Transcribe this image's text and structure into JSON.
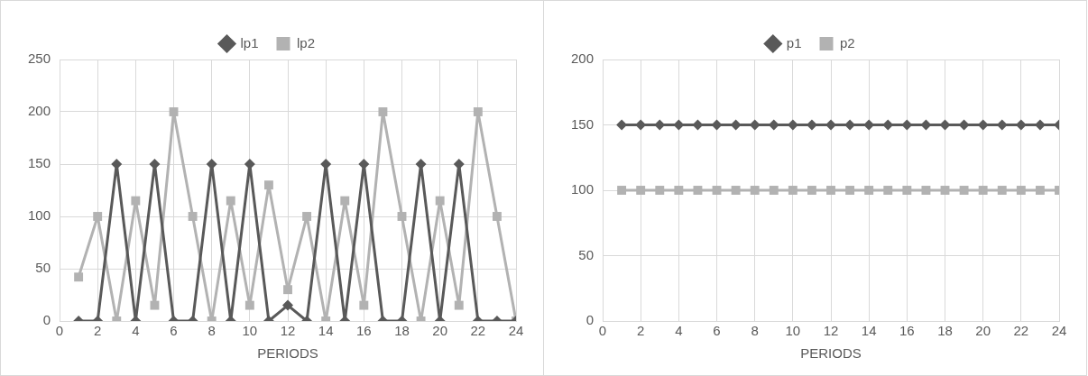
{
  "chart_data": [
    {
      "type": "line",
      "xlabel": "PERIODS",
      "x": [
        1,
        2,
        3,
        4,
        5,
        6,
        7,
        8,
        9,
        10,
        11,
        12,
        13,
        14,
        15,
        16,
        17,
        18,
        19,
        20,
        21,
        22,
        23,
        24
      ],
      "series": [
        {
          "name": "lp1",
          "color": "#595959",
          "marker": "diamond",
          "values": [
            0,
            0,
            150,
            0,
            150,
            0,
            0,
            150,
            0,
            150,
            0,
            15,
            0,
            150,
            0,
            150,
            0,
            0,
            150,
            0,
            150,
            0,
            0,
            0
          ]
        },
        {
          "name": "lp2",
          "color": "#b2b2b2",
          "marker": "square",
          "values": [
            42,
            100,
            0,
            115,
            15,
            200,
            100,
            0,
            115,
            15,
            130,
            30,
            100,
            0,
            115,
            15,
            200,
            100,
            0,
            115,
            15,
            200,
            100,
            0
          ]
        }
      ],
      "xlim": [
        0,
        24
      ],
      "xticks": [
        0,
        2,
        4,
        6,
        8,
        10,
        12,
        14,
        16,
        18,
        20,
        22,
        24
      ],
      "ylim": [
        0,
        250
      ],
      "yticks": [
        0,
        50,
        100,
        150,
        200,
        250
      ],
      "grid": true,
      "legend": "top",
      "line_style": "solid"
    },
    {
      "type": "line",
      "xlabel": "PERIODS",
      "x": [
        1,
        2,
        3,
        4,
        5,
        6,
        7,
        8,
        9,
        10,
        11,
        12,
        13,
        14,
        15,
        16,
        17,
        18,
        19,
        20,
        21,
        22,
        23,
        24
      ],
      "series": [
        {
          "name": "p1",
          "color": "#595959",
          "marker": "diamond",
          "values": [
            150,
            150,
            150,
            150,
            150,
            150,
            150,
            150,
            150,
            150,
            150,
            150,
            150,
            150,
            150,
            150,
            150,
            150,
            150,
            150,
            150,
            150,
            150,
            150
          ]
        },
        {
          "name": "p2",
          "color": "#b2b2b2",
          "marker": "square",
          "values": [
            100,
            100,
            100,
            100,
            100,
            100,
            100,
            100,
            100,
            100,
            100,
            100,
            100,
            100,
            100,
            100,
            100,
            100,
            100,
            100,
            100,
            100,
            100,
            100
          ]
        }
      ],
      "xlim": [
        0,
        24
      ],
      "xticks": [
        0,
        2,
        4,
        6,
        8,
        10,
        12,
        14,
        16,
        18,
        20,
        22,
        24
      ],
      "ylim": [
        0,
        200
      ],
      "yticks": [
        0,
        50,
        100,
        150,
        200
      ],
      "grid": true,
      "legend": "top",
      "line_style": "solid"
    }
  ]
}
